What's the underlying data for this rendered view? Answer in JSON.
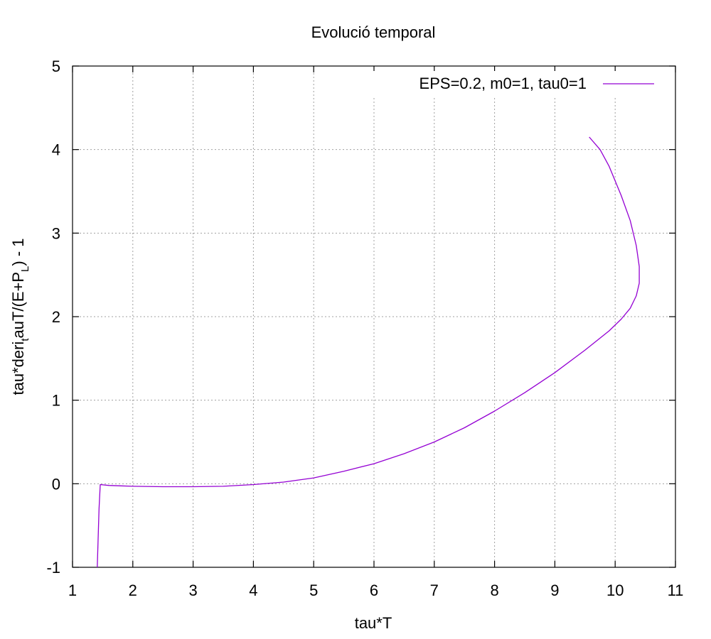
{
  "chart_data": {
    "type": "line",
    "title": "Evolució temporal",
    "xlabel": "tau*T",
    "ylabel_parts": {
      "main": "tau*deri",
      "sub_t": "t",
      "mid": "auT/(E+P",
      "sub_L": "L",
      "end": ")  -  1"
    },
    "xlim": [
      1,
      11
    ],
    "ylim": [
      -1,
      5
    ],
    "xticks": [
      "1",
      "2",
      "3",
      "4",
      "5",
      "6",
      "7",
      "8",
      "9",
      "10",
      "11"
    ],
    "yticks": [
      "-1",
      "0",
      "1",
      "2",
      "3",
      "4",
      "5"
    ],
    "grid": true,
    "legend_position": "top-right",
    "series": [
      {
        "name": "EPS=0.2, m0=1, tau0=1",
        "color": "#9400d3",
        "x": [
          1.41,
          1.44,
          1.46,
          1.6,
          1.8,
          2.0,
          2.5,
          3.0,
          3.5,
          4.0,
          4.5,
          5.0,
          5.5,
          6.0,
          6.5,
          7.0,
          7.5,
          8.0,
          8.5,
          9.0,
          9.5,
          9.9,
          10.1,
          10.25,
          10.35,
          10.4,
          10.4,
          10.35,
          10.25,
          10.1,
          9.9,
          9.75,
          9.57
        ],
        "y": [
          -1.0,
          -0.3,
          -0.01,
          -0.02,
          -0.025,
          -0.03,
          -0.035,
          -0.035,
          -0.03,
          -0.01,
          0.02,
          0.07,
          0.15,
          0.24,
          0.36,
          0.5,
          0.67,
          0.87,
          1.09,
          1.33,
          1.6,
          1.83,
          1.97,
          2.1,
          2.25,
          2.4,
          2.6,
          2.85,
          3.15,
          3.45,
          3.8,
          4.0,
          4.15
        ]
      }
    ]
  }
}
